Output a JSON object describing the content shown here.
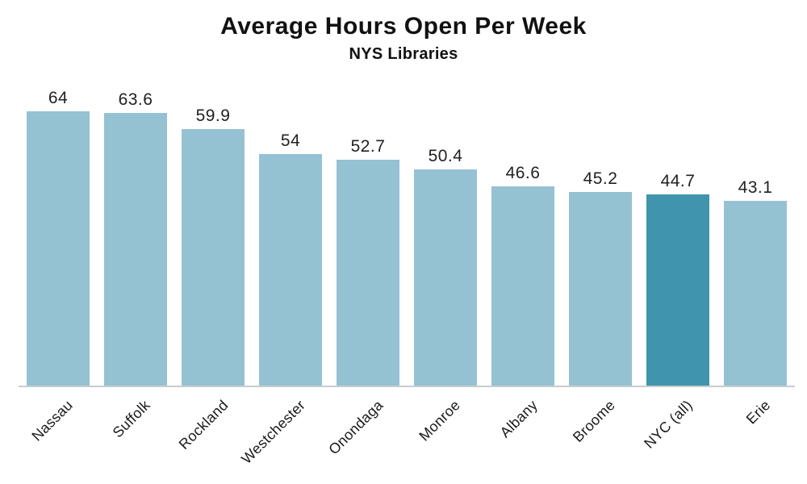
{
  "chart_data": {
    "type": "bar",
    "title": "Average Hours Open Per Week",
    "subtitle": "NYS Libraries",
    "categories": [
      "Nassau",
      "Suffolk",
      "Rockland",
      "Westchester",
      "Onondaga",
      "Monroe",
      "Albany",
      "Broome",
      "NYC (all)",
      "Erie"
    ],
    "values": [
      64,
      63.6,
      59.9,
      54,
      52.7,
      50.4,
      46.6,
      45.2,
      44.7,
      43.1
    ],
    "xlabel": "",
    "ylabel": "",
    "ylim": [
      0,
      64
    ],
    "grid": false,
    "legend": "none",
    "data_labels_shown": true,
    "highlight_category": "NYC (all)",
    "colors": {
      "bar_color": "#95c2d3",
      "highlight_color": "#4094ad",
      "axis_line_color": "#c9cccd",
      "text_color": "#111111"
    }
  }
}
